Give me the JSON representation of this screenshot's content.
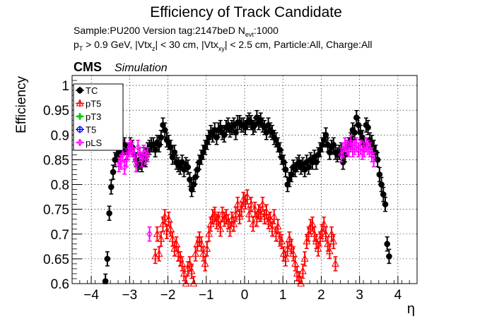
{
  "header": {
    "title": "Efficiency of Track Candidate",
    "sample_line_prefix": "Sample:PU200   Version tag:2147beD  N",
    "sample_line_sub": "evt",
    "sample_line_suffix": ":1000",
    "cut_pt_prefix": "p",
    "cut_pt_sub": "T",
    "cut_pt_rest": " > 0.9 GeV, |Vtx",
    "cut_z_sub": "z",
    "cut_mid": "| < 30 cm, |Vtx",
    "cut_xy_sub": "xy",
    "cut_rest": "| < 2.5 cm, Particle:All, Charge:All",
    "cms_label": "CMS",
    "simulation_label": "Simulation"
  },
  "chart_data": {
    "type": "scatter",
    "title": "Efficiency of Track Candidate",
    "xlabel": "η",
    "ylabel": "Efficiency",
    "xlim": [
      -4.5,
      4.5
    ],
    "ylim": [
      0.6,
      1.02
    ],
    "xticks": [
      -4,
      -3,
      -2,
      -1,
      0,
      1,
      2,
      3,
      4
    ],
    "xtick_labels": [
      "−4",
      "−3",
      "−2",
      "−1",
      "0",
      "1",
      "2",
      "3",
      "4"
    ],
    "yticks": [
      0.6,
      0.65,
      0.7,
      0.75,
      0.8,
      0.85,
      0.9,
      0.95,
      1.0
    ],
    "ytick_labels": [
      "0.6",
      "0.65",
      "0.7",
      "0.75",
      "0.8",
      "0.85",
      "0.9",
      "0.95",
      "1"
    ],
    "grid": true,
    "legend_position": "top-left",
    "legend": [
      {
        "label": "TC",
        "color": "#000000",
        "marker": "filled-circle"
      },
      {
        "label": "pT5",
        "color": "#ff0000",
        "marker": "open-triangle"
      },
      {
        "label": "pT3",
        "color": "#00cc00",
        "marker": "filled-cross"
      },
      {
        "label": "T5",
        "color": "#0000ff",
        "marker": "open-circle"
      },
      {
        "label": "pLS",
        "color": "#ff00ff",
        "marker": "open-diamond"
      }
    ],
    "series": [
      {
        "name": "TC",
        "color": "#000000",
        "marker": "filled-circle",
        "points": [
          [
            -3.63,
            0.605
          ],
          [
            -3.58,
            0.65
          ],
          [
            -3.53,
            0.742
          ],
          [
            -3.48,
            0.795
          ],
          [
            -3.43,
            0.825
          ],
          [
            -3.38,
            0.85
          ],
          [
            -3.33,
            0.86
          ],
          [
            -3.28,
            0.865
          ],
          [
            -3.23,
            0.87
          ],
          [
            -3.18,
            0.875
          ],
          [
            -3.13,
            0.88
          ],
          [
            -3.08,
            0.865
          ],
          [
            -3.03,
            0.87
          ],
          [
            -2.98,
            0.88
          ],
          [
            -2.93,
            0.875
          ],
          [
            -2.88,
            0.86
          ],
          [
            -2.83,
            0.85
          ],
          [
            -2.78,
            0.84
          ],
          [
            -2.73,
            0.845
          ],
          [
            -2.68,
            0.84
          ],
          [
            -2.63,
            0.86
          ],
          [
            -2.58,
            0.85
          ],
          [
            -2.53,
            0.87
          ],
          [
            -2.48,
            0.875
          ],
          [
            -2.43,
            0.88
          ],
          [
            -2.38,
            0.88
          ],
          [
            -2.33,
            0.87
          ],
          [
            -2.28,
            0.885
          ],
          [
            -2.23,
            0.88
          ],
          [
            -2.18,
            0.895
          ],
          [
            -2.13,
            0.92
          ],
          [
            -2.08,
            0.91
          ],
          [
            -2.03,
            0.89
          ],
          [
            -1.98,
            0.885
          ],
          [
            -1.93,
            0.875
          ],
          [
            -1.88,
            0.855
          ],
          [
            -1.83,
            0.865
          ],
          [
            -1.78,
            0.845
          ],
          [
            -1.73,
            0.84
          ],
          [
            -1.68,
            0.835
          ],
          [
            -1.63,
            0.845
          ],
          [
            -1.58,
            0.83
          ],
          [
            -1.53,
            0.84
          ],
          [
            -1.48,
            0.835
          ],
          [
            -1.43,
            0.81
          ],
          [
            -1.38,
            0.79
          ],
          [
            -1.33,
            0.8
          ],
          [
            -1.28,
            0.815
          ],
          [
            -1.23,
            0.83
          ],
          [
            -1.18,
            0.845
          ],
          [
            -1.13,
            0.855
          ],
          [
            -1.08,
            0.865
          ],
          [
            -1.03,
            0.875
          ],
          [
            -0.98,
            0.885
          ],
          [
            -0.93,
            0.895
          ],
          [
            -0.88,
            0.905
          ],
          [
            -0.83,
            0.9
          ],
          [
            -0.78,
            0.91
          ],
          [
            -0.73,
            0.895
          ],
          [
            -0.68,
            0.91
          ],
          [
            -0.63,
            0.915
          ],
          [
            -0.58,
            0.905
          ],
          [
            -0.53,
            0.9
          ],
          [
            -0.48,
            0.915
          ],
          [
            -0.43,
            0.92
          ],
          [
            -0.38,
            0.91
          ],
          [
            -0.33,
            0.915
          ],
          [
            -0.28,
            0.92
          ],
          [
            -0.23,
            0.905
          ],
          [
            -0.18,
            0.925
          ],
          [
            -0.13,
            0.925
          ],
          [
            -0.08,
            0.92
          ],
          [
            -0.03,
            0.92
          ],
          [
            0.02,
            0.915
          ],
          [
            0.07,
            0.925
          ],
          [
            0.12,
            0.93
          ],
          [
            0.17,
            0.925
          ],
          [
            0.22,
            0.915
          ],
          [
            0.27,
            0.92
          ],
          [
            0.32,
            0.935
          ],
          [
            0.37,
            0.925
          ],
          [
            0.42,
            0.93
          ],
          [
            0.47,
            0.92
          ],
          [
            0.52,
            0.915
          ],
          [
            0.57,
            0.905
          ],
          [
            0.62,
            0.92
          ],
          [
            0.67,
            0.91
          ],
          [
            0.72,
            0.905
          ],
          [
            0.77,
            0.895
          ],
          [
            0.82,
            0.89
          ],
          [
            0.87,
            0.88
          ],
          [
            0.92,
            0.87
          ],
          [
            0.97,
            0.855
          ],
          [
            1.02,
            0.845
          ],
          [
            1.07,
            0.83
          ],
          [
            1.12,
            0.8
          ],
          [
            1.17,
            0.81
          ],
          [
            1.22,
            0.82
          ],
          [
            1.27,
            0.835
          ],
          [
            1.32,
            0.83
          ],
          [
            1.37,
            0.84
          ],
          [
            1.42,
            0.845
          ],
          [
            1.47,
            0.835
          ],
          [
            1.52,
            0.84
          ],
          [
            1.57,
            0.83
          ],
          [
            1.62,
            0.845
          ],
          [
            1.67,
            0.835
          ],
          [
            1.72,
            0.85
          ],
          [
            1.77,
            0.845
          ],
          [
            1.82,
            0.855
          ],
          [
            1.87,
            0.845
          ],
          [
            1.92,
            0.86
          ],
          [
            1.97,
            0.87
          ],
          [
            2.02,
            0.88
          ],
          [
            2.07,
            0.89
          ],
          [
            2.12,
            0.9
          ],
          [
            2.17,
            0.88
          ],
          [
            2.22,
            0.865
          ],
          [
            2.27,
            0.875
          ],
          [
            2.32,
            0.88
          ],
          [
            2.37,
            0.865
          ],
          [
            2.42,
            0.86
          ],
          [
            2.47,
            0.865
          ],
          [
            2.52,
            0.87
          ],
          [
            2.57,
            0.845
          ],
          [
            2.62,
            0.86
          ],
          [
            2.67,
            0.875
          ],
          [
            2.72,
            0.88
          ],
          [
            2.77,
            0.89
          ],
          [
            2.82,
            0.91
          ],
          [
            2.87,
            0.905
          ],
          [
            2.92,
            0.935
          ],
          [
            2.97,
            0.92
          ],
          [
            3.02,
            0.905
          ],
          [
            3.07,
            0.895
          ],
          [
            3.12,
            0.88
          ],
          [
            3.17,
            0.92
          ],
          [
            3.22,
            0.915
          ],
          [
            3.27,
            0.89
          ],
          [
            3.32,
            0.885
          ],
          [
            3.37,
            0.875
          ],
          [
            3.42,
            0.865
          ],
          [
            3.47,
            0.85
          ],
          [
            3.52,
            0.82
          ],
          [
            3.57,
            0.8
          ],
          [
            3.62,
            0.78
          ],
          [
            3.67,
            0.76
          ],
          [
            3.72,
            0.68
          ],
          [
            3.77,
            0.655
          ]
        ]
      },
      {
        "name": "pT5",
        "color": "#ff0000",
        "marker": "open-triangle",
        "points": [
          [
            -2.33,
            0.655
          ],
          [
            -2.28,
            0.7
          ],
          [
            -2.23,
            0.66
          ],
          [
            -2.18,
            0.69
          ],
          [
            -2.13,
            0.72
          ],
          [
            -2.08,
            0.735
          ],
          [
            -2.03,
            0.705
          ],
          [
            -1.98,
            0.73
          ],
          [
            -1.93,
            0.71
          ],
          [
            -1.88,
            0.69
          ],
          [
            -1.83,
            0.67
          ],
          [
            -1.78,
            0.68
          ],
          [
            -1.73,
            0.66
          ],
          [
            -1.68,
            0.65
          ],
          [
            -1.63,
            0.64
          ],
          [
            -1.58,
            0.62
          ],
          [
            -1.53,
            0.6
          ],
          [
            -1.48,
            0.63
          ],
          [
            -1.43,
            0.64
          ],
          [
            -1.38,
            0.625
          ],
          [
            -1.33,
            0.6
          ],
          [
            -1.28,
            0.66
          ],
          [
            -1.23,
            0.68
          ],
          [
            -1.18,
            0.69
          ],
          [
            -1.13,
            0.68
          ],
          [
            -1.08,
            0.66
          ],
          [
            -1.03,
            0.64
          ],
          [
            -0.98,
            0.67
          ],
          [
            -0.93,
            0.7
          ],
          [
            -0.88,
            0.72
          ],
          [
            -0.83,
            0.735
          ],
          [
            -0.78,
            0.74
          ],
          [
            -0.73,
            0.725
          ],
          [
            -0.68,
            0.73
          ],
          [
            -0.63,
            0.71
          ],
          [
            -0.58,
            0.74
          ],
          [
            -0.53,
            0.73
          ],
          [
            -0.48,
            0.735
          ],
          [
            -0.43,
            0.725
          ],
          [
            -0.38,
            0.71
          ],
          [
            -0.33,
            0.73
          ],
          [
            -0.28,
            0.72
          ],
          [
            -0.23,
            0.74
          ],
          [
            -0.18,
            0.76
          ],
          [
            -0.13,
            0.735
          ],
          [
            -0.08,
            0.75
          ],
          [
            -0.03,
            0.77
          ],
          [
            0.02,
            0.765
          ],
          [
            0.07,
            0.775
          ],
          [
            0.12,
            0.74
          ],
          [
            0.17,
            0.76
          ],
          [
            0.22,
            0.72
          ],
          [
            0.27,
            0.75
          ],
          [
            0.32,
            0.73
          ],
          [
            0.37,
            0.745
          ],
          [
            0.42,
            0.74
          ],
          [
            0.47,
            0.76
          ],
          [
            0.52,
            0.735
          ],
          [
            0.57,
            0.745
          ],
          [
            0.62,
            0.725
          ],
          [
            0.67,
            0.73
          ],
          [
            0.72,
            0.71
          ],
          [
            0.77,
            0.735
          ],
          [
            0.82,
            0.7
          ],
          [
            0.87,
            0.715
          ],
          [
            0.92,
            0.69
          ],
          [
            0.97,
            0.685
          ],
          [
            1.02,
            0.66
          ],
          [
            1.07,
            0.65
          ],
          [
            1.12,
            0.67
          ],
          [
            1.17,
            0.69
          ],
          [
            1.22,
            0.675
          ],
          [
            1.27,
            0.66
          ],
          [
            1.32,
            0.64
          ],
          [
            1.37,
            0.62
          ],
          [
            1.42,
            0.61
          ],
          [
            1.47,
            0.6
          ],
          [
            1.52,
            0.625
          ],
          [
            1.57,
            0.65
          ],
          [
            1.62,
            0.685
          ],
          [
            1.67,
            0.7
          ],
          [
            1.72,
            0.715
          ],
          [
            1.77,
            0.72
          ],
          [
            1.82,
            0.7
          ],
          [
            1.87,
            0.685
          ],
          [
            1.92,
            0.67
          ],
          [
            1.97,
            0.69
          ],
          [
            2.02,
            0.705
          ],
          [
            2.07,
            0.72
          ],
          [
            2.12,
            0.7
          ],
          [
            2.17,
            0.68
          ],
          [
            2.22,
            0.665
          ],
          [
            2.27,
            0.7
          ],
          [
            2.32,
            0.685
          ],
          [
            2.37,
            0.64
          ]
        ]
      },
      {
        "name": "pLS",
        "color": "#ff00ff",
        "marker": "open-diamond",
        "points": [
          [
            -3.28,
            0.84
          ],
          [
            -3.23,
            0.845
          ],
          [
            -3.18,
            0.86
          ],
          [
            -3.13,
            0.835
          ],
          [
            -3.08,
            0.85
          ],
          [
            -3.03,
            0.87
          ],
          [
            -2.98,
            0.875
          ],
          [
            -2.93,
            0.87
          ],
          [
            -2.88,
            0.86
          ],
          [
            -2.83,
            0.84
          ],
          [
            -2.78,
            0.875
          ],
          [
            -2.73,
            0.86
          ],
          [
            -2.68,
            0.85
          ],
          [
            -2.63,
            0.865
          ],
          [
            -2.58,
            0.855
          ],
          [
            -2.53,
            0.86
          ],
          [
            -2.48,
            0.7
          ],
          [
            2.52,
            0.86
          ],
          [
            2.57,
            0.87
          ],
          [
            2.62,
            0.88
          ],
          [
            2.67,
            0.875
          ],
          [
            2.72,
            0.87
          ],
          [
            2.77,
            0.885
          ],
          [
            2.82,
            0.87
          ],
          [
            2.87,
            0.875
          ],
          [
            2.92,
            0.88
          ],
          [
            2.97,
            0.87
          ],
          [
            3.02,
            0.875
          ],
          [
            3.07,
            0.865
          ],
          [
            3.12,
            0.87
          ],
          [
            3.17,
            0.88
          ],
          [
            3.22,
            0.875
          ],
          [
            3.27,
            0.87
          ],
          [
            3.32,
            0.86
          ],
          [
            3.37,
            0.85
          ]
        ]
      }
    ]
  }
}
